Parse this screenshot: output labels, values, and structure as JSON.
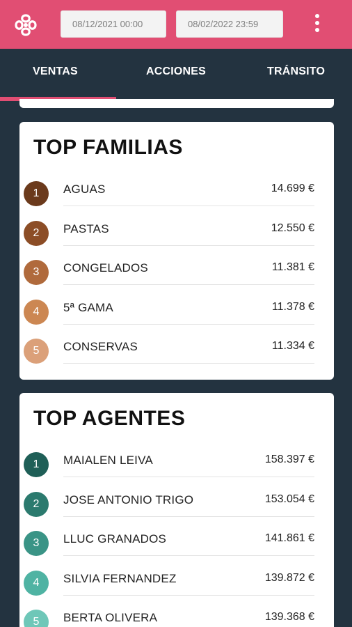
{
  "header": {
    "logo": "celtic-knot-logo",
    "date_from": "08/12/2021 00:00",
    "date_to": "08/02/2022 23:59",
    "menu_icon": "kebab-menu-icon",
    "accent": "#e14e73"
  },
  "tabs": {
    "items": [
      "VENTAS",
      "ACCIONES",
      "TRÁNSITO"
    ],
    "active": "VENTAS"
  },
  "top_familias": {
    "title": "TOP FAMILIAS",
    "items": [
      {
        "rank": "1",
        "name": "AGUAS",
        "value": "14.699 €",
        "color": "#6b3a1c"
      },
      {
        "rank": "2",
        "name": "PASTAS",
        "value": "12.550 €",
        "color": "#8c4d26"
      },
      {
        "rank": "3",
        "name": "CONGELADOS",
        "value": "11.381 €",
        "color": "#b06a3c"
      },
      {
        "rank": "4",
        "name": "5ª GAMA",
        "value": "11.378 €",
        "color": "#cc8752"
      },
      {
        "rank": "5",
        "name": "CONSERVAS",
        "value": "11.334 €",
        "color": "#dba079"
      }
    ]
  },
  "top_agentes": {
    "title": "TOP AGENTES",
    "items": [
      {
        "rank": "1",
        "name": "MAIALEN LEIVA",
        "value": "158.397 €",
        "color": "#1f5f57"
      },
      {
        "rank": "2",
        "name": "JOSE ANTONIO TRIGO",
        "value": "153.054 €",
        "color": "#2b7a6e"
      },
      {
        "rank": "3",
        "name": "LLUC GRANADOS",
        "value": "141.861 €",
        "color": "#3a9486"
      },
      {
        "rank": "4",
        "name": "SILVIA FERNANDEZ",
        "value": "139.872 €",
        "color": "#4fb3a3"
      },
      {
        "rank": "5",
        "name": "BERTA OLIVERA",
        "value": "139.368 €",
        "color": "#6ec7b8"
      }
    ]
  }
}
